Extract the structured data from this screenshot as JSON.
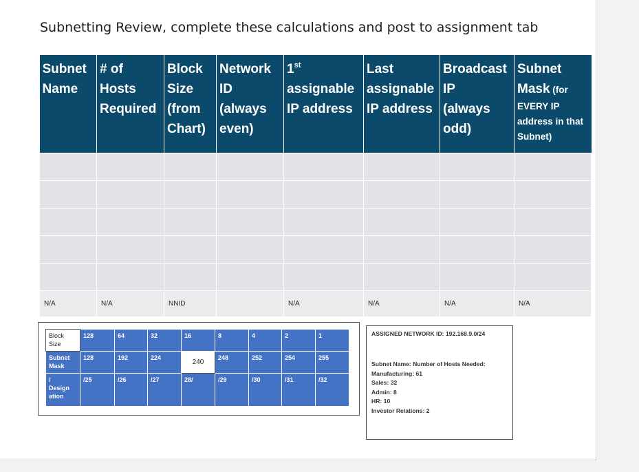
{
  "title": "Subnetting Review, complete these calculations and post to assignment tab",
  "main_table": {
    "headers": [
      {
        "text": "Subnet\nName",
        "small": ""
      },
      {
        "text": "# of\nHosts\nRequired",
        "small": ""
      },
      {
        "text": "Block\nSize\n(from\nChart)",
        "small": ""
      },
      {
        "text": "Network\nID\n(always\neven)",
        "small": ""
      },
      {
        "text": "1",
        "sup": "st",
        "rest": "\nassignable\nIP address",
        "small": ""
      },
      {
        "text": "Last\nassignable\nIP address",
        "small": ""
      },
      {
        "text": "Broadcast\nIP\n(always\nodd)",
        "small": ""
      },
      {
        "text": "Subnet\nMask",
        "small": " (for",
        "small2": "EVERY IP\naddress in that\nSubnet)"
      }
    ],
    "empty_rows": 5,
    "na_row": [
      "N/A",
      "N/A",
      "NNID",
      "",
      "N/A",
      "N/A",
      "N/A",
      "N/A"
    ]
  },
  "chart": {
    "block_size_label": "Block\nSize",
    "block_sizes": [
      "128",
      "64",
      "32",
      "16",
      "8",
      "4",
      "2",
      "1"
    ],
    "subnet_mask_label": "Subnet\nMask",
    "subnet_masks": [
      "128",
      "192",
      "224",
      "240",
      "248",
      "252",
      "254",
      "255"
    ],
    "designation_label": "/\nDesign\nation",
    "designations": [
      "/25",
      "/26",
      "/27",
      "28/",
      "/29",
      "/30",
      "/31",
      "/32"
    ]
  },
  "assignment": {
    "network_id": "ASSIGNED NETWORK ID: 192.168.9.0/24",
    "subnet_header": "Subnet Name: Number of Hosts Needed:",
    "subnets": [
      "Manufacturing: 61",
      "Sales: 32",
      "Admin: 8",
      "HR: 10",
      "Investor Relations: 2"
    ]
  }
}
